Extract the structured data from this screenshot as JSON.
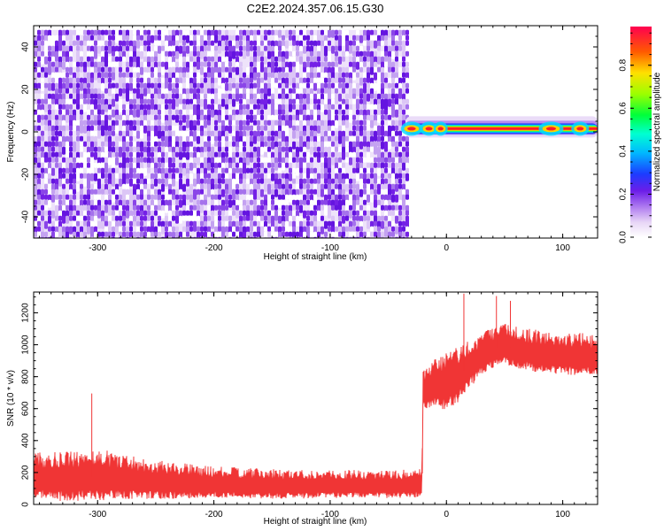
{
  "figure": {
    "title": "C2E2.2024.357.06.15.G30"
  },
  "chart_data": [
    {
      "type": "heatmap",
      "xlabel": "Height of straight line (km)",
      "ylabel": "Frequency (Hz)",
      "xlim": [
        -355,
        130
      ],
      "ylim": [
        -50,
        50
      ],
      "xticks": [
        -300,
        -200,
        -100,
        0,
        100
      ],
      "yticks": [
        -40,
        -20,
        0,
        20,
        40
      ],
      "noise_region": {
        "x": [
          -355,
          -35
        ],
        "y": [
          -50,
          48
        ]
      },
      "blank_region": {
        "x": [
          -35,
          130
        ]
      },
      "signal_band": {
        "x": [
          -35,
          130
        ],
        "center_frequency": 1.5,
        "width_hz": 4,
        "peak_amplitude": 0.9
      },
      "colorbar": {
        "label": "Normalized spectral amplitude",
        "range": [
          0,
          0.98
        ],
        "ticks": [
          "0.0",
          "0.2",
          "0.4",
          "0.6",
          "0.8"
        ],
        "tick_values": [
          0.0,
          0.2,
          0.4,
          0.6,
          0.8
        ],
        "colormap": "rainbow"
      }
    },
    {
      "type": "line",
      "xlabel": "Height of straight line (km)",
      "ylabel": "SNR (10 * v/v)",
      "xlim": [
        -355,
        130
      ],
      "ylim": [
        0,
        1330
      ],
      "xticks": [
        -300,
        -200,
        -100,
        0,
        100
      ],
      "yticks": [
        0,
        200,
        400,
        600,
        800,
        1000,
        1200
      ],
      "series": [
        {
          "name": "SNR",
          "color": "#f03535",
          "x": [
            -355,
            -330,
            -305,
            -300,
            -250,
            -200,
            -150,
            -100,
            -50,
            -21,
            -20,
            -10,
            0,
            10,
            20,
            30,
            40,
            50,
            60,
            80,
            100,
            110,
            120,
            130
          ],
          "values": [
            170,
            160,
            170,
            175,
            145,
            130,
            120,
            120,
            120,
            125,
            700,
            750,
            760,
            800,
            870,
            930,
            975,
            990,
            975,
            945,
            935,
            930,
            930,
            920
          ],
          "spread": [
            130,
            140,
            145,
            150,
            110,
            90,
            85,
            80,
            80,
            80,
            110,
            140,
            170,
            160,
            140,
            120,
            120,
            120,
            120,
            120,
            120,
            120,
            120,
            120
          ],
          "spikes": [
            {
              "x": -305,
              "y": 695
            },
            {
              "x": 15,
              "y": 1320
            },
            {
              "x": 43,
              "y": 1305
            },
            {
              "x": 55,
              "y": 1275
            }
          ]
        }
      ]
    }
  ]
}
